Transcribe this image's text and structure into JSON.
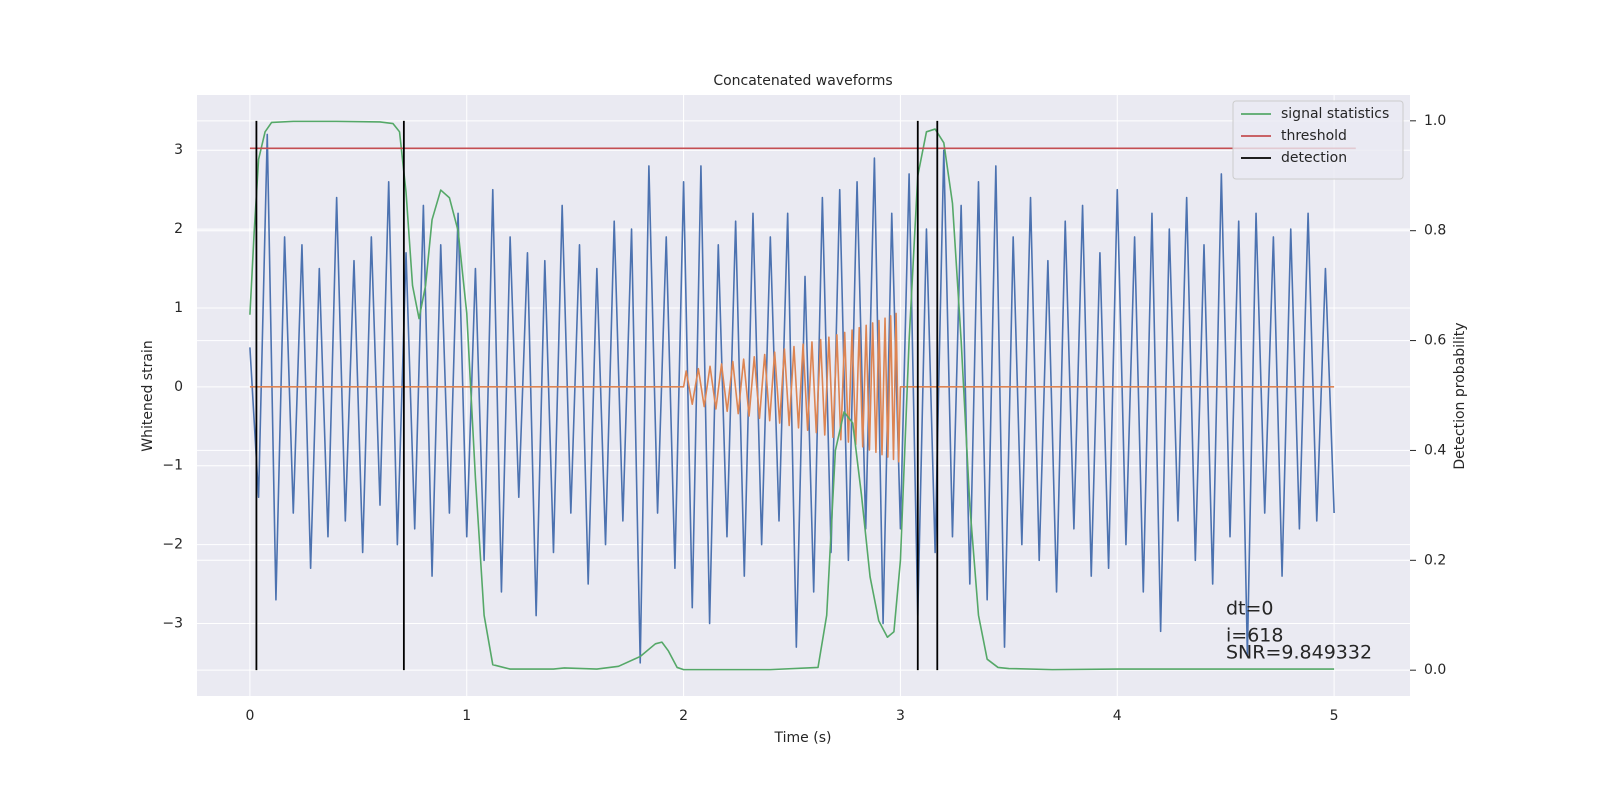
{
  "chart_data": {
    "type": "line",
    "title": "Concatenated waveforms",
    "xlabel": "Time (s)",
    "ylabel": "Whitened strain",
    "y2label": "Detection probability",
    "xlim": [
      -0.244,
      5.35
    ],
    "ylim": [
      -3.92,
      3.7
    ],
    "y2lim": [
      -0.047,
      1.047
    ],
    "xticks": [
      0,
      1,
      2,
      3,
      4,
      5
    ],
    "yticks": [
      {
        "value": -3,
        "label": "−3"
      },
      {
        "value": -2,
        "label": "−2"
      },
      {
        "value": -1,
        "label": "−1"
      },
      0,
      1,
      2,
      3
    ],
    "y2ticks": [
      {
        "value": 0,
        "label": "0.0"
      },
      0.2,
      0.4,
      0.6,
      0.8,
      {
        "value": 1,
        "label": "1.0"
      }
    ],
    "grid": true,
    "legend": "upper right",
    "annotations": [
      "dt=0",
      "i=618",
      "SNR=9.849332"
    ],
    "series": [
      {
        "color": "#4c72b0",
        "x": [
          0,
          0.04,
          0.08,
          0.12,
          0.16,
          0.2,
          0.24,
          0.28,
          0.32,
          0.36,
          0.4,
          0.44,
          0.48,
          0.52,
          0.56,
          0.6,
          0.64,
          0.68,
          0.72,
          0.76,
          0.8,
          0.84,
          0.88,
          0.92,
          0.96,
          1,
          1.04,
          1.08,
          1.12,
          1.16,
          1.2,
          1.24,
          1.28,
          1.32,
          1.36,
          1.4,
          1.44,
          1.48,
          1.52,
          1.56,
          1.6,
          1.64,
          1.68,
          1.72,
          1.76,
          1.8,
          1.84,
          1.88,
          1.92,
          1.96,
          2,
          2.04,
          2.08,
          2.12,
          2.16,
          2.2,
          2.24,
          2.28,
          2.32,
          2.36,
          2.4,
          2.44,
          2.48,
          2.52,
          2.56,
          2.6,
          2.64,
          2.68,
          2.72,
          2.76,
          2.8,
          2.84,
          2.88,
          2.92,
          2.96,
          3,
          3.04,
          3.08,
          3.12,
          3.16,
          3.2,
          3.24,
          3.28,
          3.32,
          3.36,
          3.4,
          3.44,
          3.48,
          3.52,
          3.56,
          3.6,
          3.64,
          3.68,
          3.72,
          3.76,
          3.8,
          3.84,
          3.88,
          3.92,
          3.96,
          4,
          4.04,
          4.08,
          4.12,
          4.16,
          4.2,
          4.24,
          4.28,
          4.32,
          4.36,
          4.4,
          4.44,
          4.48,
          4.52,
          4.56,
          4.6,
          4.64,
          4.68,
          4.72,
          4.76,
          4.8,
          4.84,
          4.88,
          4.92,
          4.96,
          5
        ],
        "values": [
          0.5,
          -1.4,
          3.2,
          -2.7,
          1.9,
          -1.6,
          1.8,
          -2.3,
          1.5,
          -1.9,
          2.4,
          -1.7,
          1.6,
          -2.1,
          1.9,
          -1.5,
          2.6,
          -2.0,
          1.7,
          -1.8,
          2.3,
          -2.4,
          1.8,
          -1.6,
          2.2,
          -1.9,
          1.5,
          -2.2,
          2.5,
          -2.6,
          1.9,
          -1.4,
          1.7,
          -2.9,
          1.6,
          -2.1,
          2.3,
          -1.6,
          1.8,
          -2.5,
          1.5,
          -2.0,
          2.1,
          -1.7,
          2.0,
          -3.5,
          2.8,
          -1.6,
          1.9,
          -2.3,
          2.6,
          -2.8,
          2.8,
          -3.0,
          1.8,
          -1.9,
          2.1,
          -2.4,
          2.2,
          -2.0,
          1.9,
          -1.7,
          2.2,
          -3.3,
          1.4,
          -2.6,
          2.4,
          -2.1,
          2.5,
          -2.2,
          2.6,
          -1.8,
          2.9,
          -3.0,
          2.2,
          -1.8,
          2.7,
          -2.9,
          2.0,
          -2.1,
          3.0,
          -1.9,
          2.3,
          -2.5,
          2.6,
          -2.7,
          2.8,
          -3.3,
          1.9,
          -2.0,
          2.4,
          -2.2,
          1.6,
          -2.6,
          2.1,
          -1.8,
          2.3,
          -2.4,
          1.7,
          -2.3,
          2.5,
          -2.0,
          1.9,
          -2.6,
          2.2,
          -3.1,
          2.0,
          -1.7,
          2.4,
          -2.2,
          1.8,
          -2.5,
          2.7,
          -1.9,
          2.1,
          -3.4,
          2.2,
          -1.6,
          1.9,
          -2.4,
          2.0,
          -1.8,
          2.2,
          -1.7,
          1.5,
          -1.6
        ]
      },
      {
        "color": "#dd8452",
        "x": [
          0,
          2.0,
          2.012,
          2.04,
          2.068,
          2.095,
          2.122,
          2.149,
          2.175,
          2.201,
          2.227,
          2.252,
          2.277,
          2.302,
          2.326,
          2.35,
          2.374,
          2.397,
          2.42,
          2.443,
          2.465,
          2.487,
          2.509,
          2.53,
          2.551,
          2.572,
          2.592,
          2.612,
          2.632,
          2.651,
          2.67,
          2.689,
          2.707,
          2.725,
          2.743,
          2.76,
          2.777,
          2.794,
          2.81,
          2.826,
          2.842,
          2.857,
          2.872,
          2.887,
          2.901,
          2.915,
          2.929,
          2.942,
          2.955,
          2.968,
          2.98,
          2.992,
          3.0,
          5.0
        ],
        "values": [
          0,
          0,
          0.2,
          -0.22,
          0.23,
          -0.25,
          0.26,
          -0.28,
          0.29,
          -0.31,
          0.32,
          -0.34,
          0.35,
          -0.37,
          0.38,
          -0.4,
          0.41,
          -0.43,
          0.44,
          -0.46,
          0.48,
          -0.49,
          0.51,
          -0.52,
          0.54,
          -0.55,
          0.57,
          -0.58,
          0.6,
          -0.61,
          0.63,
          -0.64,
          0.66,
          -0.67,
          0.69,
          -0.7,
          0.72,
          -0.73,
          0.75,
          -0.76,
          0.78,
          -0.8,
          0.81,
          -0.83,
          0.84,
          -0.86,
          0.87,
          -0.89,
          0.9,
          -0.92,
          0.93,
          -0.95,
          0,
          0
        ]
      },
      {
        "name": "signal statistics",
        "color": "#55a868",
        "axis": "y2",
        "x": [
          0,
          0.02,
          0.04,
          0.07,
          0.1,
          0.2,
          0.4,
          0.6,
          0.66,
          0.69,
          0.72,
          0.75,
          0.78,
          0.81,
          0.84,
          0.88,
          0.92,
          0.96,
          1.0,
          1.04,
          1.08,
          1.12,
          1.2,
          1.4,
          1.45,
          1.6,
          1.7,
          1.8,
          1.87,
          1.9,
          1.93,
          1.97,
          2.0,
          2.4,
          2.62,
          2.66,
          2.7,
          2.74,
          2.78,
          2.82,
          2.86,
          2.9,
          2.94,
          2.97,
          3.0,
          3.04,
          3.08,
          3.12,
          3.16,
          3.2,
          3.24,
          3.28,
          3.32,
          3.36,
          3.4,
          3.45,
          3.5,
          3.7,
          4.0,
          5.0
        ],
        "values": [
          0.647,
          0.8,
          0.93,
          0.98,
          0.997,
          0.999,
          0.999,
          0.998,
          0.995,
          0.98,
          0.87,
          0.7,
          0.64,
          0.7,
          0.82,
          0.874,
          0.86,
          0.8,
          0.65,
          0.35,
          0.1,
          0.01,
          0.002,
          0.002,
          0.004,
          0.002,
          0.007,
          0.025,
          0.048,
          0.051,
          0.035,
          0.005,
          0.001,
          0.001,
          0.005,
          0.1,
          0.4,
          0.47,
          0.45,
          0.32,
          0.17,
          0.09,
          0.06,
          0.07,
          0.2,
          0.6,
          0.9,
          0.98,
          0.985,
          0.96,
          0.85,
          0.6,
          0.3,
          0.1,
          0.02,
          0.005,
          0.003,
          0.001,
          0.002,
          0.002
        ]
      },
      {
        "name": "threshold",
        "color": "#c44e52",
        "axis": "y2",
        "x": [
          0,
          5.1
        ],
        "values": [
          0.95,
          0.95
        ]
      },
      {
        "name": "detection",
        "color": "#000000",
        "axis": "y2",
        "kind": "vlines",
        "x": [
          0.03,
          0.71,
          3.08,
          3.17
        ],
        "ymin": 0,
        "ymax": 1
      }
    ]
  }
}
